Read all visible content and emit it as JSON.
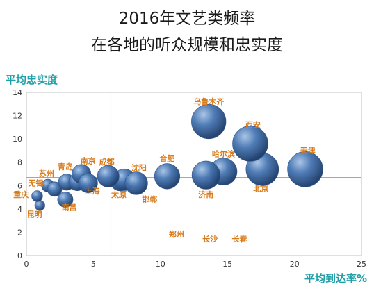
{
  "title_line1": "2016年文艺类频率",
  "title_line2": "在各地的听众规模和忠实度",
  "chart_data": {
    "type": "scatter",
    "xlabel": "平均到达率%",
    "ylabel": "平均忠实度",
    "xlim": [
      0,
      25
    ],
    "ylim": [
      0,
      14
    ],
    "xticks": [
      0,
      5,
      10,
      15,
      20,
      25
    ],
    "yticks": [
      0,
      2,
      4,
      6,
      8,
      10,
      12,
      14
    ],
    "reference_lines": {
      "x": 6.3,
      "y": 6.7
    },
    "grid": false,
    "bubble_color": "#3f6ea8",
    "label_color": "#d87a1a",
    "points": [
      {
        "name": "乌鲁木齐",
        "x": 13.6,
        "y": 11.5,
        "size": 3.2
      },
      {
        "name": "西安",
        "x": 16.7,
        "y": 9.6,
        "size": 3.3
      },
      {
        "name": "天津",
        "x": 20.8,
        "y": 7.4,
        "size": 3.3
      },
      {
        "name": "北京",
        "x": 17.6,
        "y": 7.4,
        "size": 3.0
      },
      {
        "name": "哈尔滨",
        "x": 14.7,
        "y": 7.2,
        "size": 2.4
      },
      {
        "name": "济南",
        "x": 13.4,
        "y": 6.9,
        "size": 2.5
      },
      {
        "name": "合肥",
        "x": 10.5,
        "y": 6.8,
        "size": 2.2
      },
      {
        "name": "沈阳",
        "x": 8.2,
        "y": 6.2,
        "size": 1.9
      },
      {
        "name": "邯郸",
        "x": 7.3,
        "y": 6.5,
        "size": 1.8
      },
      {
        "name": "太原",
        "x": 7.0,
        "y": 6.4,
        "size": 1.6
      },
      {
        "name": "成都",
        "x": 6.1,
        "y": 6.8,
        "size": 1.8
      },
      {
        "name": "南京",
        "x": 4.1,
        "y": 7.0,
        "size": 1.5
      },
      {
        "name": "上海",
        "x": 4.6,
        "y": 6.2,
        "size": 1.5
      },
      {
        "name": "南京2",
        "x": 3.8,
        "y": 6.3,
        "size": 1.3
      },
      {
        "name": "青岛",
        "x": 3.0,
        "y": 6.3,
        "size": 1.2
      },
      {
        "name": "苏州",
        "x": 2.1,
        "y": 5.7,
        "size": 1.0
      },
      {
        "name": "无锡",
        "x": 1.6,
        "y": 6.0,
        "size": 0.8
      },
      {
        "name": "南昌",
        "x": 2.9,
        "y": 4.8,
        "size": 1.1
      },
      {
        "name": "重庆",
        "x": 0.8,
        "y": 5.1,
        "size": 0.6
      },
      {
        "name": "昆明",
        "x": 1.0,
        "y": 4.3,
        "size": 0.5
      }
    ],
    "labels": [
      {
        "text": "乌鲁木齐",
        "x": 13.6,
        "y": 13.0
      },
      {
        "text": "西安",
        "x": 16.9,
        "y": 11.0
      },
      {
        "text": "天津",
        "x": 21.0,
        "y": 8.8
      },
      {
        "text": "北京",
        "x": 17.5,
        "y": 5.5
      },
      {
        "text": "哈尔滨",
        "x": 14.7,
        "y": 8.5
      },
      {
        "text": "济南",
        "x": 13.4,
        "y": 5.0
      },
      {
        "text": "合肥",
        "x": 10.5,
        "y": 8.1
      },
      {
        "text": "沈阳",
        "x": 8.4,
        "y": 7.3
      },
      {
        "text": "邯郸",
        "x": 9.2,
        "y": 4.6
      },
      {
        "text": "太原",
        "x": 6.9,
        "y": 5.0
      },
      {
        "text": "成都",
        "x": 6.0,
        "y": 7.8
      },
      {
        "text": "南京",
        "x": 4.6,
        "y": 7.9
      },
      {
        "text": "上海",
        "x": 4.9,
        "y": 5.3
      },
      {
        "text": "青岛",
        "x": 2.9,
        "y": 7.4
      },
      {
        "text": "苏州",
        "x": 1.5,
        "y": 6.8
      },
      {
        "text": "无锡",
        "x": 0.7,
        "y": 6.0
      },
      {
        "text": "南昌",
        "x": 3.2,
        "y": 3.9
      },
      {
        "text": "重庆",
        "x": -0.4,
        "y": 5.0
      },
      {
        "text": "昆明",
        "x": 0.6,
        "y": 3.3
      },
      {
        "text": "郑州",
        "x": 11.2,
        "y": 1.6
      },
      {
        "text": "长沙",
        "x": 13.7,
        "y": 1.2
      },
      {
        "text": "长春",
        "x": 15.9,
        "y": 1.2
      }
    ]
  }
}
